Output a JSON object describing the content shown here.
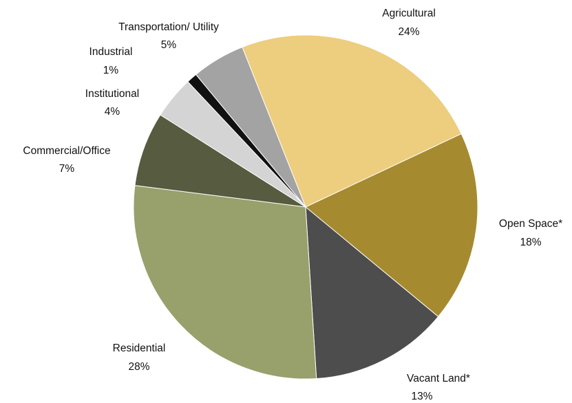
{
  "chart_data": {
    "type": "pie",
    "categories": [
      "Agricultural",
      "Open Space*",
      "Vacant Land*",
      "Residential",
      "Commercial/Office",
      "Institutional",
      "Industrial",
      "Transportation/ Utility"
    ],
    "values": [
      24,
      18,
      13,
      28,
      7,
      4,
      1,
      5
    ],
    "value_labels": [
      "24%",
      "18%",
      "13%",
      "28%",
      "7%",
      "4%",
      "1%",
      "5%"
    ],
    "colors": [
      "#edcd7e",
      "#a68a30",
      "#4d4d4d",
      "#98a06c",
      "#575b3f",
      "#d4d4d4",
      "#111111",
      "#a3a3a3"
    ]
  }
}
